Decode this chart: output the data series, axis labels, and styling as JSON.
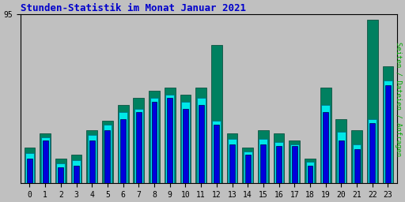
{
  "title": "Stunden-Statistik im Monat Januar 2021",
  "ylabel": "Seiten / Dateien / Anfragen",
  "xlabel_ticks": [
    0,
    1,
    2,
    3,
    4,
    5,
    6,
    7,
    8,
    9,
    10,
    11,
    12,
    13,
    14,
    15,
    16,
    17,
    18,
    19,
    20,
    21,
    22,
    23
  ],
  "y_tick_label": "95",
  "background_color": "#c0c0c0",
  "plot_bg_color": "#c0c0c0",
  "title_color": "#0000cc",
  "ylabel_color": "#00aa00",
  "grid_color": "#b0b0b0",
  "bar_color_green": "#008060",
  "bar_color_cyan": "#00e8e8",
  "bar_color_blue": "#0000dd",
  "series_green": [
    20,
    28,
    14,
    16,
    30,
    35,
    44,
    48,
    52,
    54,
    50,
    54,
    78,
    28,
    20,
    30,
    28,
    24,
    14,
    54,
    36,
    30,
    92,
    66
  ],
  "series_cyan": [
    17,
    26,
    11,
    13,
    27,
    33,
    40,
    42,
    48,
    50,
    46,
    48,
    35,
    25,
    18,
    25,
    23,
    22,
    12,
    44,
    29,
    22,
    36,
    58
  ],
  "series_blue": [
    14,
    24,
    9,
    10,
    24,
    30,
    36,
    40,
    46,
    48,
    42,
    44,
    33,
    22,
    16,
    22,
    21,
    21,
    10,
    40,
    24,
    19,
    34,
    55
  ],
  "ylim": [
    0,
    95
  ],
  "figsize": [
    5.12,
    2.56
  ],
  "dpi": 100
}
